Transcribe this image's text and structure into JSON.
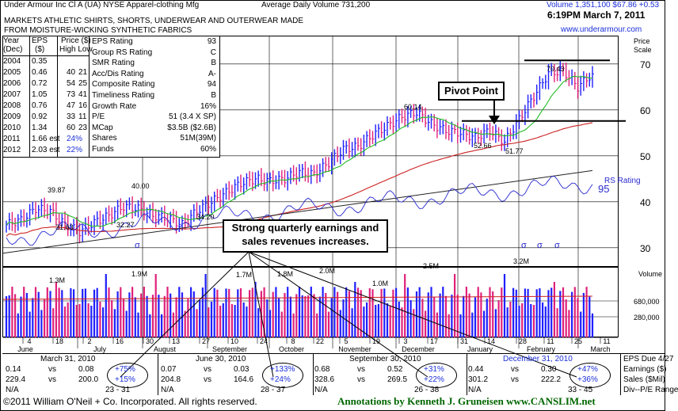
{
  "header": {
    "company": "Under Armour Inc Cl A",
    "ticker": "(UA)",
    "exchange_industry": "NYSE  Apparel-clothing Mfg",
    "avg_volume": "Average Daily Volume 731,200",
    "volume_price": "Volume 1,351,100  $67.86  +0.53",
    "datetime": "6:19PM March 7, 2011",
    "website": "www.underarmour.com",
    "description": "MARKETS ATHLETIC SHIRTS, SHORTS, UNDERWEAR AND OUTERWEAR   MADE FROM MOISTURE-WICKING SYNTHETIC FABRICS"
  },
  "fundamentals": {
    "headers": [
      "Year",
      "EPS",
      "Price ($)"
    ],
    "subheaders": [
      "(Dec)",
      "($)",
      "High Low"
    ],
    "rows": [
      {
        "year": "2004",
        "eps": "0.35",
        "high": "",
        "low": ""
      },
      {
        "year": "2005",
        "eps": "0.46",
        "high": "40",
        "low": "21"
      },
      {
        "year": "2006",
        "eps": "0.72",
        "high": "54",
        "low": "25"
      },
      {
        "year": "2007",
        "eps": "1.05",
        "high": "73",
        "low": "41"
      },
      {
        "year": "2008",
        "eps": "0.76",
        "high": "47",
        "low": "16"
      },
      {
        "year": "2009",
        "eps": "0.92",
        "high": "33",
        "low": "11"
      },
      {
        "year": "2010",
        "eps": "1.34",
        "high": "60",
        "low": "23"
      },
      {
        "year": "2011",
        "eps": "1.66 est",
        "high": "24%",
        "low": ""
      },
      {
        "year": "2012",
        "eps": "2.03 est",
        "high": "22%",
        "low": ""
      }
    ],
    "ratings": [
      {
        "label": "EPS Rating",
        "value": "93"
      },
      {
        "label": "Group RS Rating",
        "value": "C"
      },
      {
        "label": "SMR Rating",
        "value": "B"
      },
      {
        "label": "Acc/Dis Rating",
        "value": "A-"
      },
      {
        "label": "Composite Rating",
        "value": "94"
      },
      {
        "label": "Timeliness Rating",
        "value": "B"
      },
      {
        "label": "Growth Rate",
        "value": "16%"
      },
      {
        "label": "P/E",
        "value": "51 (3.4 X SP)"
      },
      {
        "label": "MCap",
        "value": "$3.5B ($2.6B)"
      },
      {
        "label": "Shares",
        "value": "51M(39M)"
      },
      {
        "label": "Funds",
        "value": "60%"
      }
    ]
  },
  "annotations": {
    "pivot_point": "Pivot Point",
    "earnings_note_1": "Strong quarterly earnings and",
    "earnings_note_2": "sales revenues increases.",
    "rs_rating": "RS Rating",
    "rs_value": "95",
    "price_scale": "Price Scale",
    "volume_label": "Volume"
  },
  "price_labels": [
    "39.87",
    "31.63",
    "32.27",
    "40.00",
    "34.20",
    "60.14",
    "52.66",
    "51.77",
    "70.43"
  ],
  "volume_labels": [
    "1.3M",
    "1.9M",
    "1.7M",
    "1.8M",
    "2.0M",
    "1.0M",
    "2.5M",
    "3.2M"
  ],
  "volume_scale": [
    "680,000",
    "280,000"
  ],
  "months": [
    "June",
    "July",
    "August",
    "September",
    "October",
    "November",
    "December",
    "January",
    "February",
    "March"
  ],
  "day_ticks": [
    "4",
    "18",
    "2",
    "16",
    "30",
    "13",
    "27",
    "10",
    "24",
    "8",
    "22",
    "5",
    "19",
    "3",
    "17",
    "31",
    "14",
    "28",
    "11",
    "25",
    "11"
  ],
  "quarters": [
    {
      "date": "March 31, 2010",
      "eps_cur": "0.14",
      "eps_prev": "0.08",
      "eps_pct": "+75%",
      "sales_cur": "229.4",
      "sales_prev": "200.0",
      "sales_pct": "+15%",
      "pe": "N/A",
      "pe_range": "23 - 31"
    },
    {
      "date": "June 30, 2010",
      "eps_cur": "0.07",
      "eps_prev": "0.03",
      "eps_pct": "+133%",
      "sales_cur": "204.8",
      "sales_prev": "164.6",
      "sales_pct": "+24%",
      "pe": "N/A",
      "pe_range": "28 - 37"
    },
    {
      "date": "September 30, 2010",
      "eps_cur": "0.68",
      "eps_prev": "0.52",
      "eps_pct": "+31%",
      "sales_cur": "328.6",
      "sales_prev": "269.5",
      "sales_pct": "+22%",
      "pe": "N/A",
      "pe_range": "26 - 38"
    },
    {
      "date": "December 31, 2010",
      "eps_cur": "0.44",
      "eps_prev": "0.30",
      "eps_pct": "+47%",
      "sales_cur": "301.2",
      "sales_prev": "222.2",
      "sales_pct": "+36%",
      "pe": "N/A",
      "pe_range": "33 - 45"
    }
  ],
  "vs_label": "vs",
  "right_legend": [
    "EPS Due 4/27",
    "Earnings ($)",
    "Sales ($Mil)",
    "Div--P/E Range"
  ],
  "footer": {
    "copyright": "©2011 William O'Neil + Co. Incorporated. All rights reserved.",
    "annotations_by": "Annotations by Kenneth J. Gruneisen  www.CANSLIM.net"
  },
  "colors": {
    "up": "#1f1fff",
    "down": "#e0207a",
    "ma50": "#22bb22",
    "ma200": "#cc2222",
    "rs": "#2a2ad0",
    "annot": "#006600",
    "blue_text": "#1b2fd8"
  },
  "chart_data": {
    "type": "candlestick-volume",
    "price_axis_ticks": [
      30,
      40,
      50,
      60,
      70
    ],
    "ylim": [
      26,
      76
    ],
    "price_series_weekly_close": [
      {
        "date": "2010-05-28",
        "close": 35.0
      },
      {
        "date": "2010-06-04",
        "close": 36.0
      },
      {
        "date": "2010-06-11",
        "close": 38.5
      },
      {
        "date": "2010-06-18",
        "close": 38.0
      },
      {
        "date": "2010-06-25",
        "close": 35.0
      },
      {
        "date": "2010-07-02",
        "close": 33.5
      },
      {
        "date": "2010-07-09",
        "close": 35.5
      },
      {
        "date": "2010-07-16",
        "close": 37.0
      },
      {
        "date": "2010-07-23",
        "close": 39.0
      },
      {
        "date": "2010-07-30",
        "close": 38.5
      },
      {
        "date": "2010-08-06",
        "close": 37.0
      },
      {
        "date": "2010-08-13",
        "close": 36.5
      },
      {
        "date": "2010-08-20",
        "close": 35.0
      },
      {
        "date": "2010-08-27",
        "close": 38.0
      },
      {
        "date": "2010-09-03",
        "close": 40.0
      },
      {
        "date": "2010-09-10",
        "close": 42.0
      },
      {
        "date": "2010-09-17",
        "close": 44.0
      },
      {
        "date": "2010-09-24",
        "close": 45.0
      },
      {
        "date": "2010-10-01",
        "close": 44.5
      },
      {
        "date": "2010-10-08",
        "close": 45.0
      },
      {
        "date": "2010-10-15",
        "close": 46.5
      },
      {
        "date": "2010-10-22",
        "close": 46.0
      },
      {
        "date": "2010-10-29",
        "close": 48.5
      },
      {
        "date": "2010-11-05",
        "close": 51.5
      },
      {
        "date": "2010-11-12",
        "close": 52.0
      },
      {
        "date": "2010-11-19",
        "close": 54.5
      },
      {
        "date": "2010-11-26",
        "close": 56.5
      },
      {
        "date": "2010-12-03",
        "close": 58.5
      },
      {
        "date": "2010-12-10",
        "close": 59.5
      },
      {
        "date": "2010-12-17",
        "close": 57.0
      },
      {
        "date": "2010-12-24",
        "close": 55.5
      },
      {
        "date": "2010-12-31",
        "close": 55.0
      },
      {
        "date": "2011-01-07",
        "close": 54.0
      },
      {
        "date": "2011-01-14",
        "close": 55.5
      },
      {
        "date": "2011-01-21",
        "close": 53.0
      },
      {
        "date": "2011-01-28",
        "close": 58.0
      },
      {
        "date": "2011-02-04",
        "close": 63.0
      },
      {
        "date": "2011-02-11",
        "close": 68.0
      },
      {
        "date": "2011-02-18",
        "close": 68.5
      },
      {
        "date": "2011-02-25",
        "close": 65.0
      },
      {
        "date": "2011-03-04",
        "close": 67.86
      }
    ],
    "pivot_level": 57.6,
    "upper_line_level": 70.43,
    "volume_axis": [
      280000,
      680000
    ]
  }
}
